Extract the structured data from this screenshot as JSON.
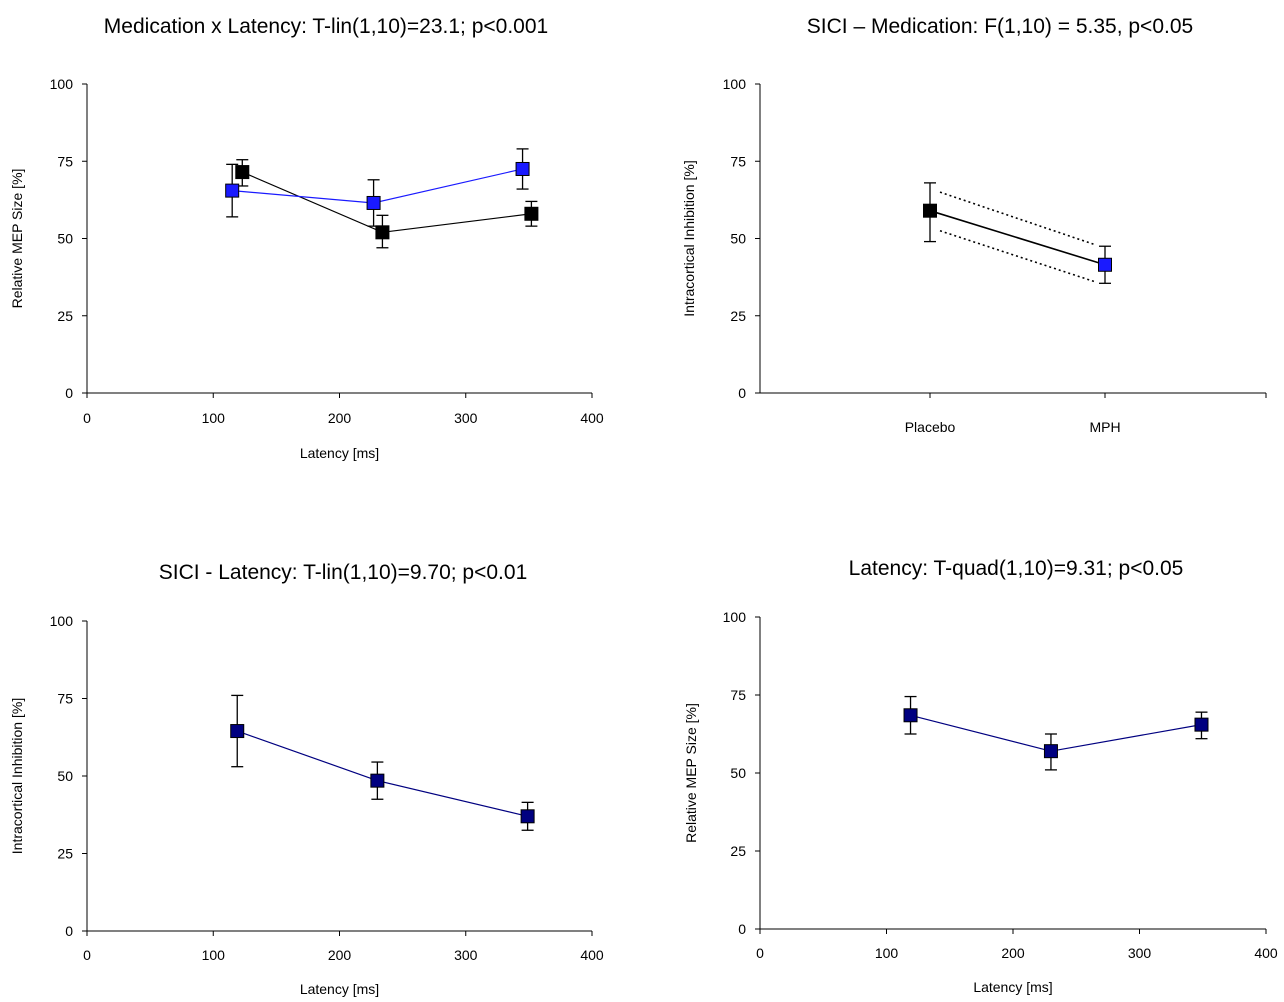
{
  "chart_data": [
    {
      "type": "line",
      "title": "Medication x Latency: T-lin(1,10)=23.1; p<0.001",
      "xlabel": "Latency [ms]",
      "ylabel": "Relative MEP Size [%]",
      "xlim": [
        0,
        400
      ],
      "ylim": [
        0,
        100
      ],
      "xticks": [
        "0",
        "100",
        "200",
        "300",
        "400"
      ],
      "yticks": [
        "0",
        "25",
        "50",
        "75",
        "100"
      ],
      "grid": false,
      "series": [
        {
          "color": "#000000",
          "points": [
            {
              "x": 123,
              "y": 71.5,
              "err_low": 67,
              "err_high": 75.5
            },
            {
              "x": 234,
              "y": 52,
              "err_low": 47,
              "err_high": 57.5
            },
            {
              "x": 352,
              "y": 58,
              "err_low": 54,
              "err_high": 62
            }
          ]
        },
        {
          "color": "#1a1aff",
          "points": [
            {
              "x": 115,
              "y": 65.5,
              "err_low": 57,
              "err_high": 74
            },
            {
              "x": 227,
              "y": 61.5,
              "err_low": 54,
              "err_high": 69
            },
            {
              "x": 345,
              "y": 72.5,
              "err_low": 66,
              "err_high": 79
            }
          ]
        }
      ]
    },
    {
      "type": "line",
      "title": "SICI – Medication: F(1,10) = 5.35, p<0.05",
      "xlabel": "",
      "ylabel": "Intracortical Inhibition [%]",
      "ylim": [
        0,
        100
      ],
      "yticks": [
        "0",
        "25",
        "50",
        "75",
        "100"
      ],
      "categories": [
        "Placebo",
        "MPH"
      ],
      "grid": false,
      "series": [
        {
          "color": "#000000",
          "points": [
            {
              "x": "Placebo",
              "y": 59,
              "err_low": 49,
              "err_high": 68,
              "marker_color": "#000000"
            },
            {
              "x": "MPH",
              "y": 41.5,
              "err_low": 35.5,
              "err_high": 47.5,
              "marker_color": "#1a1aff"
            }
          ]
        }
      ],
      "dotted_band": {
        "upper": [
          65,
          48
        ],
        "lower": [
          52.5,
          36
        ]
      }
    },
    {
      "type": "line",
      "title": "SICI - Latency: T-lin(1,10)=9.70; p<0.01",
      "xlabel": "Latency [ms]",
      "ylabel": "Intracortical Inhibition [%]",
      "xlim": [
        0,
        400
      ],
      "ylim": [
        0,
        100
      ],
      "xticks": [
        "0",
        "100",
        "200",
        "300",
        "400"
      ],
      "yticks": [
        "0",
        "25",
        "50",
        "75",
        "100"
      ],
      "grid": false,
      "series": [
        {
          "color": "#000080",
          "points": [
            {
              "x": 119,
              "y": 64.5,
              "err_low": 53,
              "err_high": 76
            },
            {
              "x": 230,
              "y": 48.5,
              "err_low": 42.5,
              "err_high": 54.5
            },
            {
              "x": 349,
              "y": 37,
              "err_low": 32.5,
              "err_high": 41.5
            }
          ]
        }
      ]
    },
    {
      "type": "line",
      "title": "Latency: T-quad(1,10)=9.31; p<0.05",
      "xlabel": "Latency [ms]",
      "ylabel": "Relative MEP Size [%]",
      "xlim": [
        0,
        400
      ],
      "ylim": [
        0,
        100
      ],
      "xticks": [
        "0",
        "100",
        "200",
        "300",
        "400"
      ],
      "yticks": [
        "0",
        "25",
        "50",
        "75",
        "100"
      ],
      "grid": false,
      "series": [
        {
          "color": "#000080",
          "points": [
            {
              "x": 119,
              "y": 68.5,
              "err_low": 62.5,
              "err_high": 74.5
            },
            {
              "x": 230,
              "y": 57,
              "err_low": 51,
              "err_high": 62.5
            },
            {
              "x": 349,
              "y": 65.5,
              "err_low": 61,
              "err_high": 69.5
            }
          ]
        }
      ]
    }
  ]
}
